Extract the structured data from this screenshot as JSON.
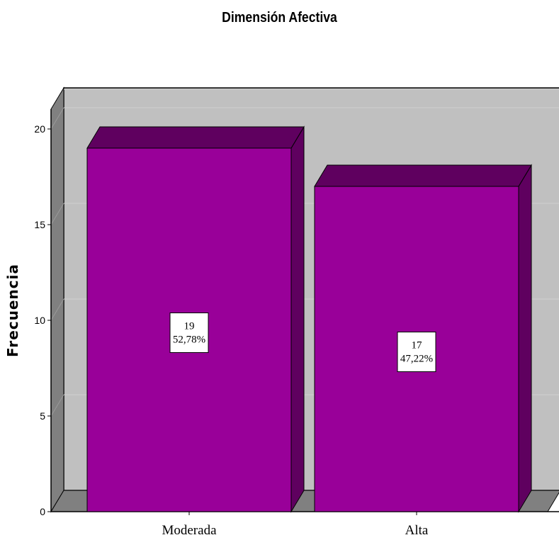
{
  "chart_data": {
    "type": "bar",
    "title": "Dimensión Afectiva",
    "xlabel": "",
    "ylabel": "Frecuencia",
    "categories": [
      "Moderada",
      "Alta"
    ],
    "values": [
      19,
      17
    ],
    "percent_labels": [
      "52,78%",
      "47,22%"
    ],
    "yticks": [
      "0",
      "5",
      "10",
      "15",
      "20"
    ],
    "ylim": [
      0,
      21
    ],
    "grid": true,
    "style": "3d",
    "colors": {
      "bar_front": "#990099",
      "bar_side": "#5f005f",
      "bar_top": "#5f005f",
      "back_wall": "#c0c0c0",
      "side_wall": "#808080",
      "floor": "#808080",
      "gridline": "#d0d0d0"
    }
  }
}
